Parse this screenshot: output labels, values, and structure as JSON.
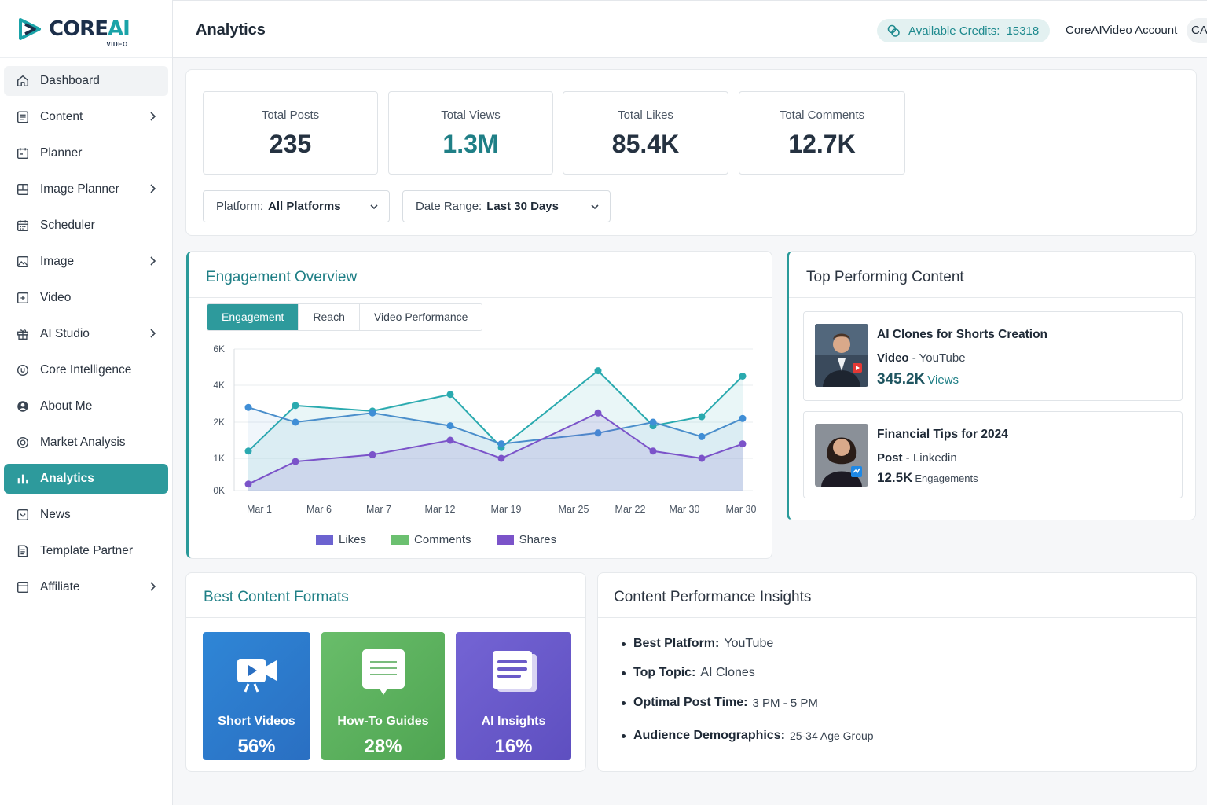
{
  "brand": {
    "name_main": "CORE",
    "name_accent": "AI",
    "sub": "VIDEO"
  },
  "header": {
    "title": "Analytics",
    "credits_label": "Available Credits:",
    "credits_value": "15318",
    "account": "CoreAIVideo Account",
    "avatar_initials": "CA"
  },
  "sidebar": {
    "items": [
      {
        "label": "Dashboard",
        "icon": "home-icon",
        "chevron": false
      },
      {
        "label": "Content",
        "icon": "document-icon",
        "chevron": true
      },
      {
        "label": "Planner",
        "icon": "calendar-icon",
        "chevron": false
      },
      {
        "label": "Image Planner",
        "icon": "layout-icon",
        "chevron": true
      },
      {
        "label": "Scheduler",
        "icon": "calendar-grid-icon",
        "chevron": false
      },
      {
        "label": "Image",
        "icon": "image-icon",
        "chevron": true
      },
      {
        "label": "Video",
        "icon": "video-plus-icon",
        "chevron": false
      },
      {
        "label": "AI Studio",
        "icon": "gift-icon",
        "chevron": true
      },
      {
        "label": "Core Intelligence",
        "icon": "circle-icon",
        "chevron": false
      },
      {
        "label": "About Me",
        "icon": "user-icon",
        "chevron": false
      },
      {
        "label": "Market Analysis",
        "icon": "target-icon",
        "chevron": false
      },
      {
        "label": "Analytics",
        "icon": "bar-chart-icon",
        "chevron": false
      },
      {
        "label": "News",
        "icon": "inbox-icon",
        "chevron": false
      },
      {
        "label": "Template Partner",
        "icon": "file-text-icon",
        "chevron": false
      },
      {
        "label": "Affiliate",
        "icon": "folder-icon",
        "chevron": true
      }
    ],
    "active": "Analytics"
  },
  "stats": [
    {
      "label": "Total Posts",
      "value": "235"
    },
    {
      "label": "Total Views",
      "value": "1.3M"
    },
    {
      "label": "Total Likes",
      "value": "85.4K"
    },
    {
      "label": "Total Comments",
      "value": "12.7K"
    }
  ],
  "filters": {
    "platform_label": "Platform:",
    "platform_value": "All Platforms",
    "date_label": "Date Range:",
    "date_value": "Last 30 Days"
  },
  "engagement": {
    "title": "Engagement Overview",
    "tabs": [
      "Engagement",
      "Reach",
      "Video Performance"
    ],
    "active_tab": "Engagement"
  },
  "chart_data": {
    "type": "line",
    "x": [
      "Mar 1",
      "Mar 6",
      "Mar 7",
      "Mar 12",
      "Mar 19",
      "Mar 25",
      "Mar 22",
      "Mar 30",
      "Mar 30"
    ],
    "y_ticks": [
      "6K",
      "4K",
      "2K",
      "1K",
      "0K"
    ],
    "series": [
      {
        "name": "Likes",
        "color": "#6a5acd",
        "values": [
          1200,
          2900,
          2600,
          3500,
          1300,
          4800,
          1900,
          2300,
          4500
        ]
      },
      {
        "name": "Comments",
        "color": "#5fbf6f",
        "values": [
          2800,
          2000,
          2500,
          1900,
          1400,
          1700,
          2000,
          1600,
          2200
        ]
      },
      {
        "name": "Shares",
        "color": "#7b53c9",
        "values": [
          200,
          900,
          1100,
          1500,
          1000,
          2500,
          1200,
          1000,
          1400
        ]
      }
    ],
    "legend": [
      "Likes",
      "Comments",
      "Shares"
    ],
    "legend_colors": [
      "#6c63d0",
      "#6cc070",
      "#7b53c9"
    ],
    "legend_position": "bottom"
  },
  "top_content": {
    "title": "Top Performing Content",
    "items": [
      {
        "title": "AI Clones for Shorts Creation",
        "type": "Video",
        "platform": "YouTube",
        "metric": "345.2K",
        "unit": "Views"
      },
      {
        "title": "Financial Tips for 2024",
        "type": "Post",
        "platform": "Linkedin",
        "metric": "12.5K",
        "unit": "Engagements"
      }
    ]
  },
  "formats": {
    "title": "Best Content Formats",
    "items": [
      {
        "label": "Short Videos",
        "pct": "56%",
        "icon": "video-camera-icon",
        "color": "#2f7fd0"
      },
      {
        "label": "How-To Guides",
        "pct": "28%",
        "icon": "chat-doc-icon",
        "color": "#5db35f"
      },
      {
        "label": "AI Insights",
        "pct": "16%",
        "icon": "list-doc-icon",
        "color": "#6b5bc9"
      }
    ]
  },
  "insights": {
    "title": "Content Performance Insights",
    "items": [
      {
        "key": "Best Platform:",
        "value": "YouTube"
      },
      {
        "key": "Top Topic:",
        "value": "AI Clones"
      },
      {
        "key": "Optimal Post Time:",
        "value": "3 PM - 5 PM"
      },
      {
        "key": "Audience Demographics:",
        "value": "25-34 Age Group"
      }
    ]
  }
}
